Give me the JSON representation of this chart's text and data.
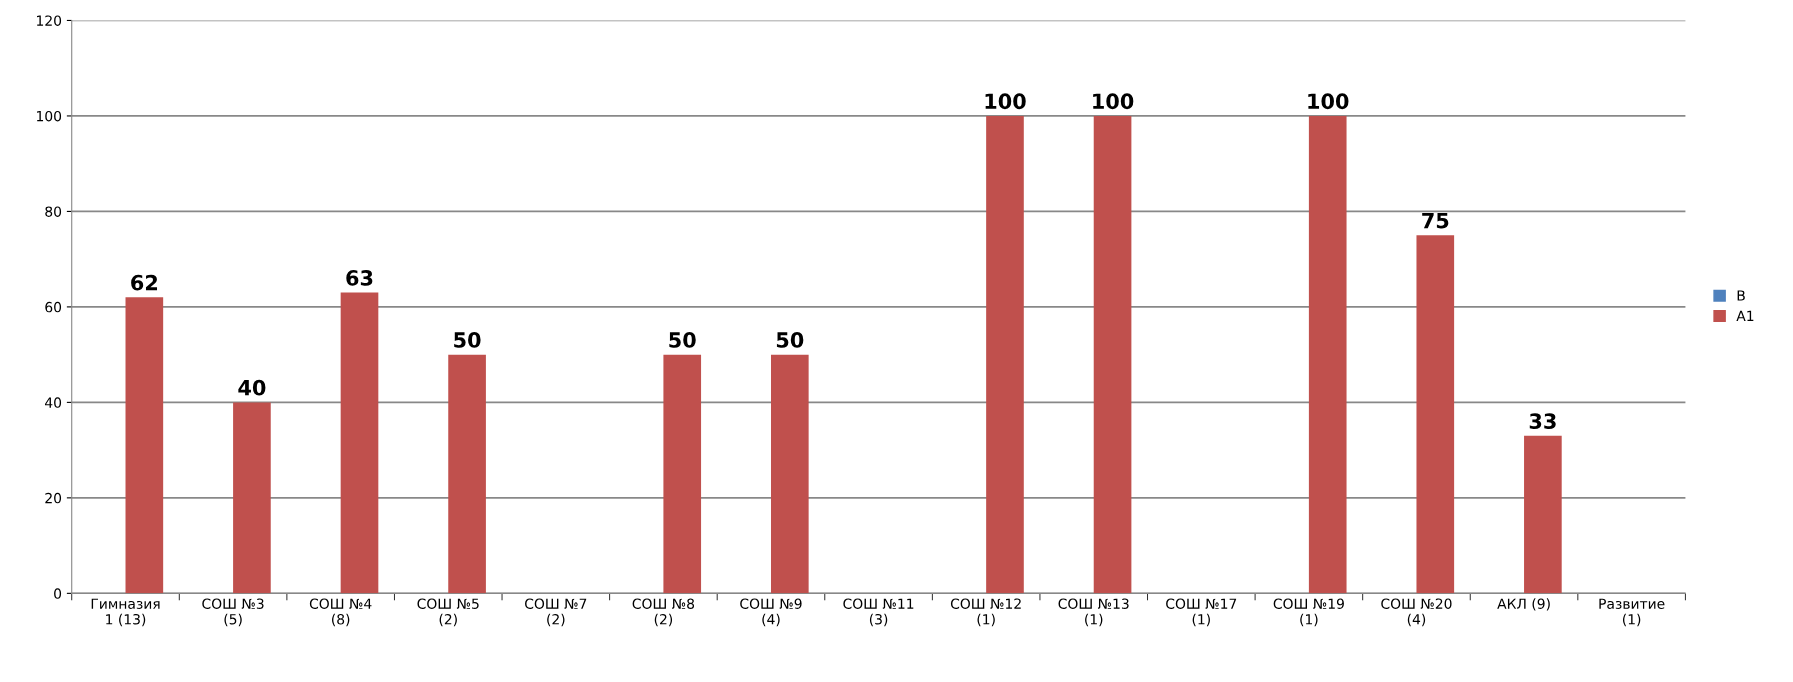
{
  "chart_data": {
    "type": "bar",
    "categories": [
      "Гимназия 1 (13)",
      "СОШ №3 (5)",
      "СОШ №4 (8)",
      "СОШ №5 (2)",
      "СОШ №7 (2)",
      "СОШ №8 (2)",
      "СОШ №9 (4)",
      "СОШ №11 (3)",
      "СОШ №12 (1)",
      "СОШ №13 (1)",
      "СОШ №17 (1)",
      "СОШ №19 (1)",
      "СОШ №20 (4)",
      "АКЛ (9)",
      "Развитие (1)"
    ],
    "series": [
      {
        "name": "В",
        "color": "#4f81bd",
        "values": [
          null,
          null,
          null,
          null,
          null,
          null,
          null,
          null,
          null,
          null,
          null,
          null,
          null,
          null,
          null
        ]
      },
      {
        "name": "А1",
        "color": "#c0504d",
        "values": [
          62,
          40,
          63,
          50,
          null,
          50,
          50,
          null,
          100,
          100,
          null,
          100,
          75,
          33,
          null
        ]
      }
    ],
    "data_labels": true,
    "ylim": [
      0,
      120
    ],
    "yticks": [
      0,
      20,
      40,
      60,
      80,
      100,
      120
    ],
    "grid": "y",
    "legend": "right"
  }
}
